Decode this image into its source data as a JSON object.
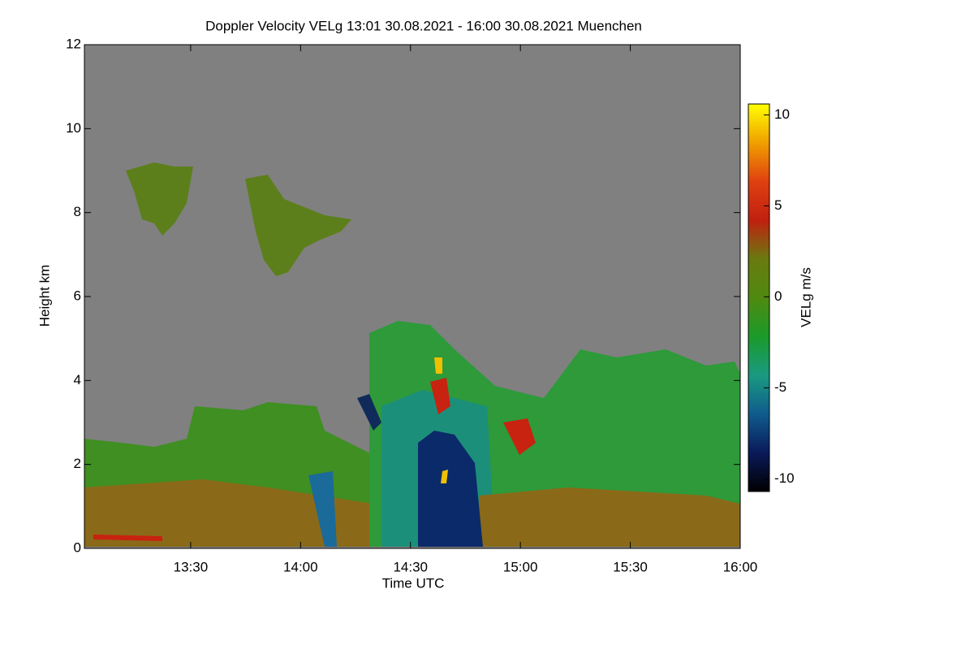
{
  "chart_data": {
    "type": "heatmap",
    "title": "Doppler Velocity VELg   13:01 30.08.2021 - 16:00 30.08.2021 Muenchen",
    "x_label": "Time UTC",
    "y_label": "Height km",
    "colorbar_label": "VELg m/s",
    "xlim": [
      781,
      960
    ],
    "xticks": [
      {
        "value": 810,
        "label": "13:30"
      },
      {
        "value": 840,
        "label": "14:00"
      },
      {
        "value": 870,
        "label": "14:30"
      },
      {
        "value": 900,
        "label": "15:00"
      },
      {
        "value": 930,
        "label": "15:30"
      },
      {
        "value": 960,
        "label": "16:00"
      }
    ],
    "ylim": [
      0,
      12
    ],
    "yticks": [
      0,
      2,
      4,
      6,
      8,
      10,
      12
    ],
    "clim": [
      -10.7,
      10.6
    ],
    "cticks": [
      -10,
      -5,
      0,
      5,
      10
    ],
    "colorscale": [
      "#000000",
      "#0a1a5a",
      "#0f5c8c",
      "#1a9a80",
      "#1a9a2a",
      "#4f8a10",
      "#6a7a10",
      "#c02010",
      "#e04010",
      "#f0a000",
      "#ffff00"
    ]
  }
}
